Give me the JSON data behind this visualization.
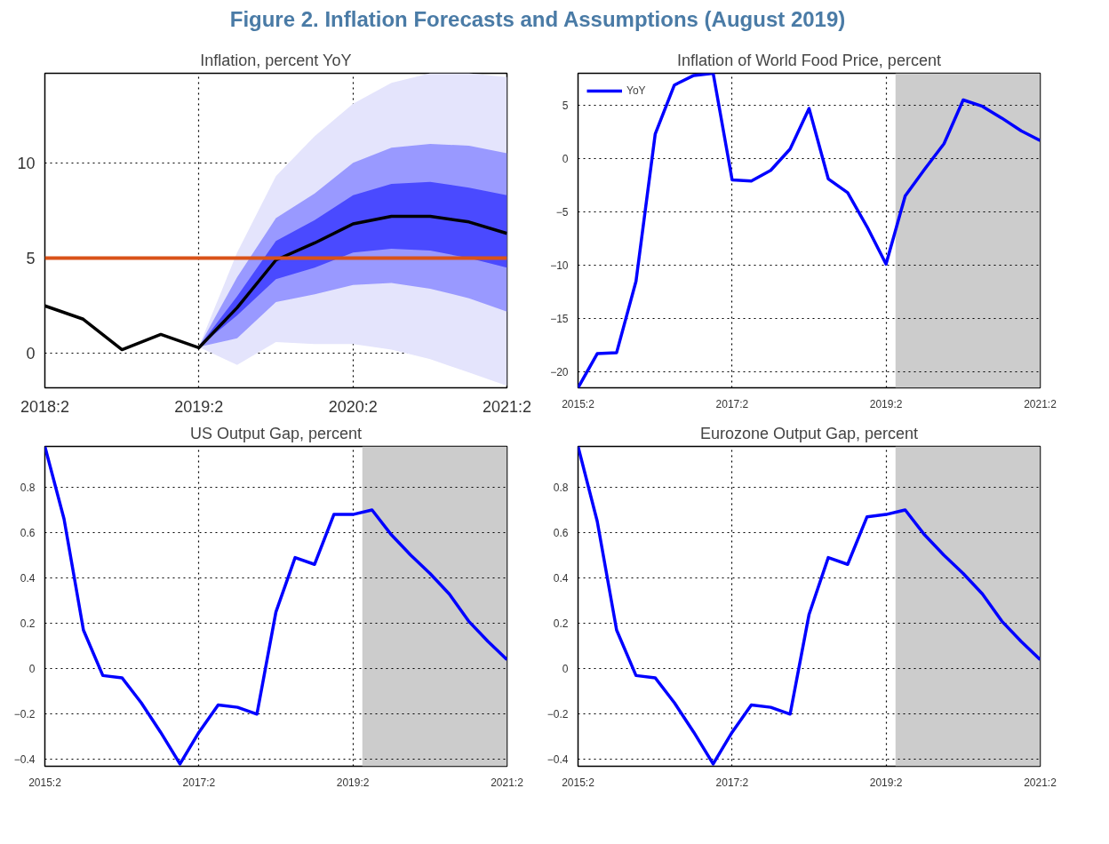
{
  "chart_data": [
    {
      "type": "line",
      "title": "Inflation, percent YoY",
      "annotations": [
        "Figure 2. Inflation Forecasts and Assumptions (August 2019)"
      ],
      "x": [
        "2018-04",
        "2018-07",
        "2018-10",
        "2019-01",
        "2019-04",
        "2019-07",
        "2019-10",
        "2020-01",
        "2020-04",
        "2020-07",
        "2020-10",
        "2021-01",
        "2021-04"
      ],
      "series": [
        {
          "type": "area",
          "color": "#e4e4fc",
          "values": [
            null,
            null,
            null,
            null,
            null,
            null,
            null,
            null,
            null,
            null,
            null,
            null,
            null
          ],
          "lower": [
            null,
            null,
            null,
            null,
            0.34,
            -0.6,
            0.6,
            0.5,
            0.5,
            0.2,
            -0.3,
            -1.0,
            -1.7
          ],
          "upper": [
            null,
            null,
            null,
            null,
            0.34,
            5.3,
            9.3,
            11.4,
            13.1,
            14.2,
            14.7,
            14.7,
            14.5
          ]
        },
        {
          "type": "area",
          "color": "#9999ff",
          "values": [
            null,
            null,
            null,
            null,
            null,
            null,
            null,
            null,
            null,
            null,
            null,
            null,
            null
          ],
          "lower": [
            null,
            null,
            null,
            null,
            0.34,
            0.8,
            2.7,
            3.1,
            3.6,
            3.7,
            3.4,
            2.9,
            2.2
          ],
          "upper": [
            null,
            null,
            null,
            null,
            0.34,
            4.0,
            7.1,
            8.4,
            10.0,
            10.8,
            11.0,
            10.9,
            10.5
          ]
        },
        {
          "type": "area",
          "color": "#4a4aff",
          "values": [
            null,
            null,
            null,
            null,
            null,
            null,
            null,
            null,
            null,
            null,
            null,
            null,
            null
          ],
          "lower": [
            null,
            null,
            null,
            null,
            0.34,
            2.0,
            3.9,
            4.5,
            5.3,
            5.5,
            5.4,
            5.0,
            4.5
          ],
          "upper": [
            null,
            null,
            null,
            null,
            0.34,
            3.0,
            5.9,
            7.0,
            8.3,
            8.9,
            9.0,
            8.7,
            8.3
          ]
        },
        {
          "type": "line",
          "color": "#000000",
          "values": [
            2.5,
            1.8,
            0.2,
            1.0,
            0.3,
            2.4,
            4.9,
            5.8,
            6.8,
            7.2,
            7.2,
            6.9,
            6.3
          ]
        }
      ],
      "ref_lines": [
        {
          "axis": "y",
          "value": 5,
          "color": "#d95319",
          "line_style": "solid"
        }
      ],
      "xlim": [
        "2018-04",
        "2021-04"
      ],
      "xticks": [
        {
          "value": "2018-04",
          "label": "2018:2"
        },
        {
          "value": "2019-04",
          "label": "2019:2"
        },
        {
          "value": "2020-04",
          "label": "2020:2"
        },
        {
          "value": "2021-04",
          "label": "2021:2"
        }
      ],
      "ylim": [
        -1.8,
        14.7
      ],
      "yticks": [
        0,
        5,
        10
      ],
      "grid": true,
      "line_style": "solid"
    },
    {
      "type": "line",
      "title": "Inflation of World Food Price, percent",
      "x": [
        "2015-04",
        "2015-07",
        "2015-10",
        "2016-01",
        "2016-04",
        "2016-07",
        "2016-10",
        "2017-01",
        "2017-04",
        "2017-07",
        "2017-10",
        "2018-01",
        "2018-04",
        "2018-07",
        "2018-10",
        "2019-01",
        "2019-04",
        "2019-07",
        "2019-10",
        "2020-01",
        "2020-04",
        "2020-07",
        "2020-10",
        "2021-01",
        "2021-04"
      ],
      "series": [
        {
          "name": "YoY",
          "color": "#0000ff",
          "values": [
            -21.5,
            -18.3,
            -18.2,
            -11.5,
            2.3,
            6.9,
            7.8,
            8.0,
            -2.0,
            -2.1,
            -1.1,
            0.9,
            4.7,
            -1.9,
            -3.2,
            -6.4,
            -9.9,
            -3.5,
            -1.0,
            1.4,
            5.5,
            4.9,
            3.8,
            2.6,
            1.7
          ]
        }
      ],
      "bands": [
        {
          "axis": "x",
          "from": "2019-05-16",
          "to": "2021-04",
          "color": "#cccccc"
        }
      ],
      "xlim": [
        "2015-04",
        "2021-04"
      ],
      "xticks": [
        {
          "value": "2015-04",
          "label": "2015:2"
        },
        {
          "value": "2017-04",
          "label": "2017:2"
        },
        {
          "value": "2019-04",
          "label": "2019:2"
        },
        {
          "value": "2021-04",
          "label": "2021:2"
        }
      ],
      "ylim": [
        -21.5,
        8
      ],
      "yticks": [
        -20,
        -15,
        -10,
        -5,
        0,
        5
      ],
      "grid": true,
      "legend": "top left",
      "line_style": "solid"
    },
    {
      "type": "line",
      "title": "US Output Gap, percent",
      "x": [
        "2015-04",
        "2015-07",
        "2015-10",
        "2016-01",
        "2016-04",
        "2016-07",
        "2016-10",
        "2017-01",
        "2017-04",
        "2017-07",
        "2017-10",
        "2018-01",
        "2018-04",
        "2018-07",
        "2018-10",
        "2019-01",
        "2019-04",
        "2019-07",
        "2019-10",
        "2020-01",
        "2020-04",
        "2020-07",
        "2020-10",
        "2021-01",
        "2021-04"
      ],
      "series": [
        {
          "color": "#0000ff",
          "values": [
            0.98,
            0.66,
            0.17,
            -0.03,
            -0.04,
            -0.15,
            -0.28,
            -0.42,
            -0.28,
            -0.16,
            -0.17,
            -0.2,
            0.25,
            0.49,
            0.46,
            0.68,
            0.68,
            0.7,
            0.59,
            0.5,
            0.42,
            0.33,
            0.21,
            0.12,
            0.04
          ]
        }
      ],
      "bands": [
        {
          "axis": "x",
          "from": "2019-05-16",
          "to": "2021-04",
          "color": "#cccccc"
        }
      ],
      "xlim": [
        "2015-04",
        "2021-04"
      ],
      "xticks": [
        {
          "value": "2015-04",
          "label": "2015:2"
        },
        {
          "value": "2017-04",
          "label": "2017:2"
        },
        {
          "value": "2019-04",
          "label": "2019:2"
        },
        {
          "value": "2021-04",
          "label": "2021:2"
        }
      ],
      "ylim": [
        -0.43,
        0.98
      ],
      "yticks": [
        -0.4,
        -0.2,
        0,
        0.2,
        0.4,
        0.6,
        0.8
      ],
      "grid": true,
      "line_style": "solid"
    },
    {
      "type": "line",
      "title": "Eurozone Output Gap, percent",
      "x": [
        "2015-04",
        "2015-07",
        "2015-10",
        "2016-01",
        "2016-04",
        "2016-07",
        "2016-10",
        "2017-01",
        "2017-04",
        "2017-07",
        "2017-10",
        "2018-01",
        "2018-04",
        "2018-07",
        "2018-10",
        "2019-01",
        "2019-04",
        "2019-07",
        "2019-10",
        "2020-01",
        "2020-04",
        "2020-07",
        "2020-10",
        "2021-01",
        "2021-04"
      ],
      "series": [
        {
          "color": "#0000ff",
          "values": [
            0.98,
            0.65,
            0.17,
            -0.03,
            -0.04,
            -0.15,
            -0.28,
            -0.42,
            -0.28,
            -0.16,
            -0.17,
            -0.2,
            0.24,
            0.49,
            0.46,
            0.67,
            0.68,
            0.7,
            0.59,
            0.5,
            0.42,
            0.33,
            0.21,
            0.12,
            0.04
          ]
        }
      ],
      "bands": [
        {
          "axis": "x",
          "from": "2019-05-16",
          "to": "2021-04",
          "color": "#cccccc"
        }
      ],
      "xlim": [
        "2015-04",
        "2021-04"
      ],
      "xticks": [
        {
          "value": "2015-04",
          "label": "2015:2"
        },
        {
          "value": "2017-04",
          "label": "2017:2"
        },
        {
          "value": "2019-04",
          "label": "2019:2"
        },
        {
          "value": "2021-04",
          "label": "2021:2"
        }
      ],
      "ylim": [
        -0.43,
        0.98
      ],
      "yticks": [
        -0.4,
        -0.2,
        0,
        0.2,
        0.4,
        0.6,
        0.8
      ],
      "grid": true,
      "line_style": "solid"
    }
  ]
}
